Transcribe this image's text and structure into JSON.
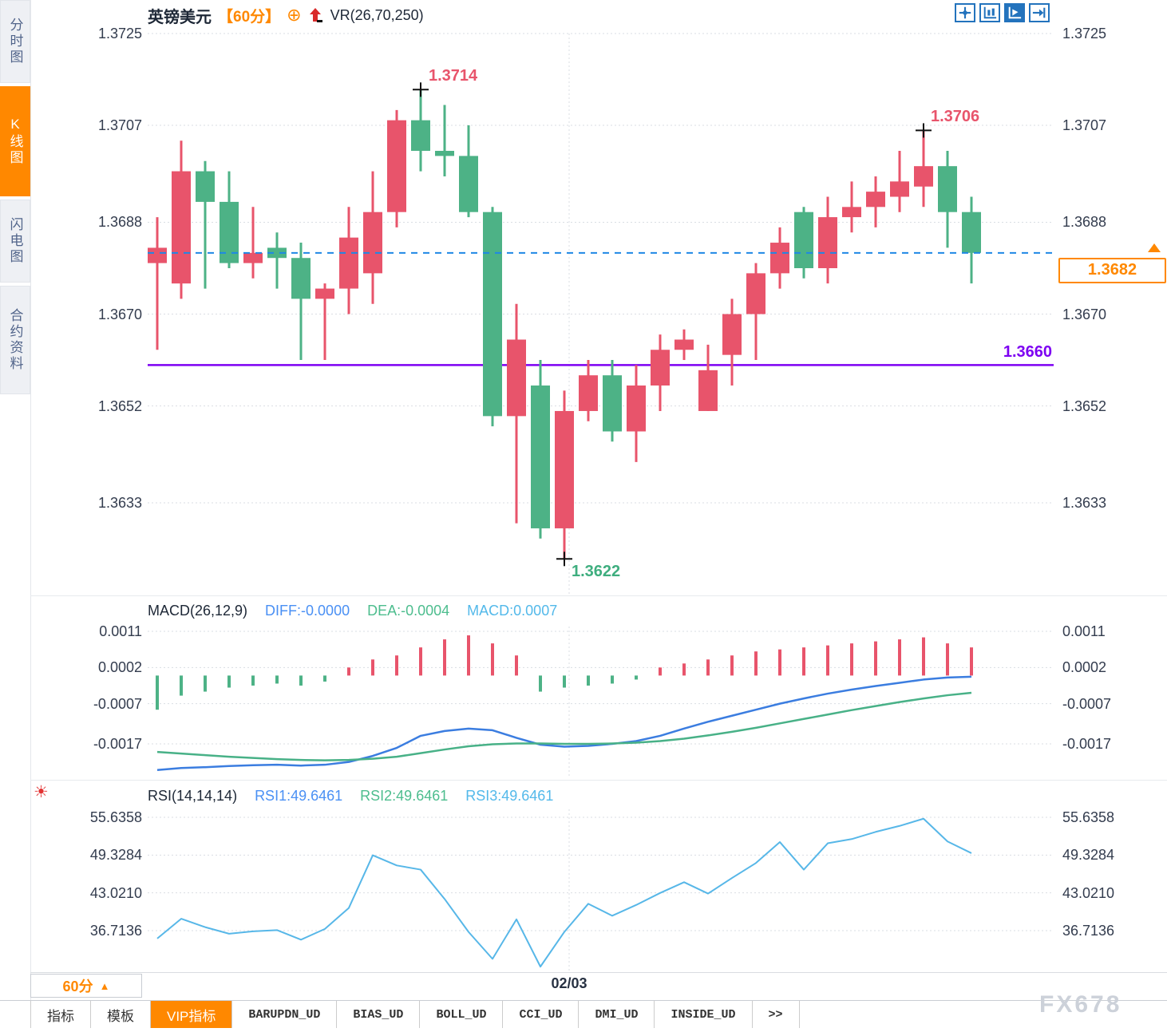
{
  "sidebar": {
    "tabs": [
      {
        "label": "分时图",
        "active": false
      },
      {
        "label": "K线图",
        "active": true
      },
      {
        "label": "闪电图",
        "active": false
      },
      {
        "label": "合约资料",
        "active": false
      }
    ]
  },
  "header": {
    "symbol": "英镑美元",
    "period": "【60分】",
    "indicator": "VR(26,70,250)"
  },
  "toolbar_icons": [
    "pan-crosshair-icon",
    "axis-zoom-icon",
    "auto-fit-icon",
    "goto-latest-icon"
  ],
  "annotations": {
    "high1_label": "1.3714",
    "high2_label": "1.3706",
    "low_label": "1.3622",
    "support_label": "1.3660",
    "last_price_label": "1.3682"
  },
  "macd_header": {
    "title": "MACD(26,12,9)",
    "diff": "DIFF:-0.0000",
    "dea": "DEA:-0.0004",
    "macd": "MACD:0.0007"
  },
  "rsi_header": {
    "title": "RSI(14,14,14)",
    "rsi1": "RSI1:49.6461",
    "rsi2": "RSI2:49.6461",
    "rsi3": "RSI3:49.6461"
  },
  "time_axis": {
    "date": "02/03",
    "period_button": "60分"
  },
  "bottom_tabs": [
    {
      "label": "指标",
      "active": false,
      "mono": false
    },
    {
      "label": "模板",
      "active": false,
      "mono": false
    },
    {
      "label": "VIP指标",
      "active": true,
      "mono": false
    },
    {
      "label": "BARUPDN_UD",
      "active": false,
      "mono": true
    },
    {
      "label": "BIAS_UD",
      "active": false,
      "mono": true
    },
    {
      "label": "BOLL_UD",
      "active": false,
      "mono": true
    },
    {
      "label": "CCI_UD",
      "active": false,
      "mono": true
    },
    {
      "label": "DMI_UD",
      "active": false,
      "mono": true
    },
    {
      "label": "INSIDE_UD",
      "active": false,
      "mono": true
    },
    {
      "label": ">>",
      "active": false,
      "mono": true
    }
  ],
  "watermark": "FX678",
  "colors": {
    "up": "#e8546b",
    "down": "#4db286",
    "accent_orange": "#ff8800",
    "last_price_line": "#1e88e5",
    "support_line": "#7d00f2",
    "macd_diff_line": "#3b7de0",
    "macd_dea_line": "#48b187",
    "rsi_line": "#57b7e8",
    "grid": "#dadde3",
    "icon_blue": "#2373bd",
    "cross_marker": "#111111"
  },
  "chart_data": [
    {
      "type": "candlestick",
      "title": "英镑美元 60分",
      "y_ticks": [
        1.3725,
        1.3707,
        1.3688,
        1.367,
        1.3652,
        1.3633
      ],
      "last_price": 1.3682,
      "support_line": 1.366,
      "marker_high1": {
        "index": 11,
        "price": 1.3714
      },
      "marker_high2": {
        "index": 32,
        "price": 1.3706
      },
      "marker_low": {
        "index": 17,
        "price": 1.3622
      },
      "candles_ohlc": [
        [
          1.368,
          1.3689,
          1.3663,
          1.3683
        ],
        [
          1.3676,
          1.3704,
          1.3673,
          1.3698
        ],
        [
          1.3698,
          1.37,
          1.3675,
          1.3692
        ],
        [
          1.3692,
          1.3698,
          1.3679,
          1.368
        ],
        [
          1.368,
          1.3691,
          1.3677,
          1.3682
        ],
        [
          1.3683,
          1.3686,
          1.3675,
          1.3681
        ],
        [
          1.3681,
          1.3684,
          1.3661,
          1.3673
        ],
        [
          1.3673,
          1.3676,
          1.3661,
          1.3675
        ],
        [
          1.3675,
          1.3691,
          1.367,
          1.3685
        ],
        [
          1.3678,
          1.3698,
          1.3672,
          1.369
        ],
        [
          1.369,
          1.371,
          1.3687,
          1.3708
        ],
        [
          1.3708,
          1.3714,
          1.3698,
          1.3702
        ],
        [
          1.3702,
          1.3711,
          1.3697,
          1.3701
        ],
        [
          1.3701,
          1.3707,
          1.3689,
          1.369
        ],
        [
          1.369,
          1.3691,
          1.3648,
          1.365
        ],
        [
          1.365,
          1.3672,
          1.3629,
          1.3665
        ],
        [
          1.3656,
          1.3661,
          1.3626,
          1.3628
        ],
        [
          1.3628,
          1.3655,
          1.3622,
          1.3651
        ],
        [
          1.3651,
          1.3661,
          1.3649,
          1.3658
        ],
        [
          1.3658,
          1.3661,
          1.3645,
          1.3647
        ],
        [
          1.3647,
          1.366,
          1.3641,
          1.3656
        ],
        [
          1.3656,
          1.3666,
          1.3651,
          1.3663
        ],
        [
          1.3663,
          1.3667,
          1.3661,
          1.3665
        ],
        [
          1.3651,
          1.3664,
          1.3651,
          1.3659
        ],
        [
          1.3662,
          1.3673,
          1.3656,
          1.367
        ],
        [
          1.367,
          1.368,
          1.3661,
          1.3678
        ],
        [
          1.3678,
          1.3687,
          1.3675,
          1.3684
        ],
        [
          1.369,
          1.3691,
          1.3677,
          1.3679
        ],
        [
          1.3679,
          1.3693,
          1.3676,
          1.3689
        ],
        [
          1.3689,
          1.3696,
          1.3686,
          1.3691
        ],
        [
          1.3691,
          1.3697,
          1.3687,
          1.3694
        ],
        [
          1.3693,
          1.3702,
          1.369,
          1.3696
        ],
        [
          1.3695,
          1.3706,
          1.3691,
          1.3699
        ],
        [
          1.3699,
          1.3702,
          1.3683,
          1.369
        ],
        [
          1.369,
          1.3693,
          1.3676,
          1.3682
        ]
      ]
    },
    {
      "type": "bar+line",
      "title": "MACD(26,12,9)",
      "y_ticks": [
        0.0011,
        0.0002,
        -0.0007,
        -0.0017
      ],
      "histogram": [
        -0.00085,
        -0.0005,
        -0.0004,
        -0.0003,
        -0.00025,
        -0.0002,
        -0.00025,
        -0.00015,
        0.0002,
        0.0004,
        0.0005,
        0.0007,
        0.0009,
        0.001,
        0.0008,
        0.0005,
        -0.0004,
        -0.0003,
        -0.00025,
        -0.0002,
        -0.0001,
        0.0002,
        0.0003,
        0.0004,
        0.0005,
        0.0006,
        0.00065,
        0.0007,
        0.00075,
        0.0008,
        0.00085,
        0.0009,
        0.00095,
        0.0008,
        0.0007
      ],
      "diff": [
        -0.00235,
        -0.0023,
        -0.00228,
        -0.00225,
        -0.00223,
        -0.00222,
        -0.00224,
        -0.00222,
        -0.00215,
        -0.002,
        -0.0018,
        -0.0015,
        -0.00138,
        -0.00132,
        -0.00136,
        -0.00155,
        -0.00172,
        -0.00177,
        -0.00175,
        -0.0017,
        -0.00163,
        -0.0015,
        -0.00132,
        -0.00115,
        -0.001,
        -0.00085,
        -0.0007,
        -0.00057,
        -0.00045,
        -0.00035,
        -0.00026,
        -0.00018,
        -0.0001,
        -5e-05,
        -3e-05
      ],
      "dea": [
        -0.0019,
        -0.00194,
        -0.00198,
        -0.00202,
        -0.00205,
        -0.00208,
        -0.0021,
        -0.00211,
        -0.0021,
        -0.00207,
        -0.00202,
        -0.00193,
        -0.00184,
        -0.00176,
        -0.00171,
        -0.00169,
        -0.00169,
        -0.0017,
        -0.0017,
        -0.00169,
        -0.00167,
        -0.00163,
        -0.00157,
        -0.00149,
        -0.0014,
        -0.0013,
        -0.00119,
        -0.00108,
        -0.00097,
        -0.00086,
        -0.00076,
        -0.00066,
        -0.00057,
        -0.00049,
        -0.00043
      ]
    },
    {
      "type": "line",
      "title": "RSI(14,14,14)",
      "y_ticks": [
        55.6358,
        49.3284,
        43.021,
        36.7136
      ],
      "values": [
        35.4,
        38.7,
        37.3,
        36.2,
        36.6,
        36.8,
        35.2,
        37.0,
        40.5,
        49.3,
        47.6,
        46.9,
        42.0,
        36.5,
        32.0,
        38.6,
        30.7,
        36.5,
        41.2,
        39.2,
        41.0,
        43.0,
        44.8,
        42.9,
        45.5,
        48.0,
        51.5,
        46.9,
        51.3,
        52.0,
        53.2,
        54.2,
        55.4,
        51.6,
        49.6461
      ]
    }
  ]
}
